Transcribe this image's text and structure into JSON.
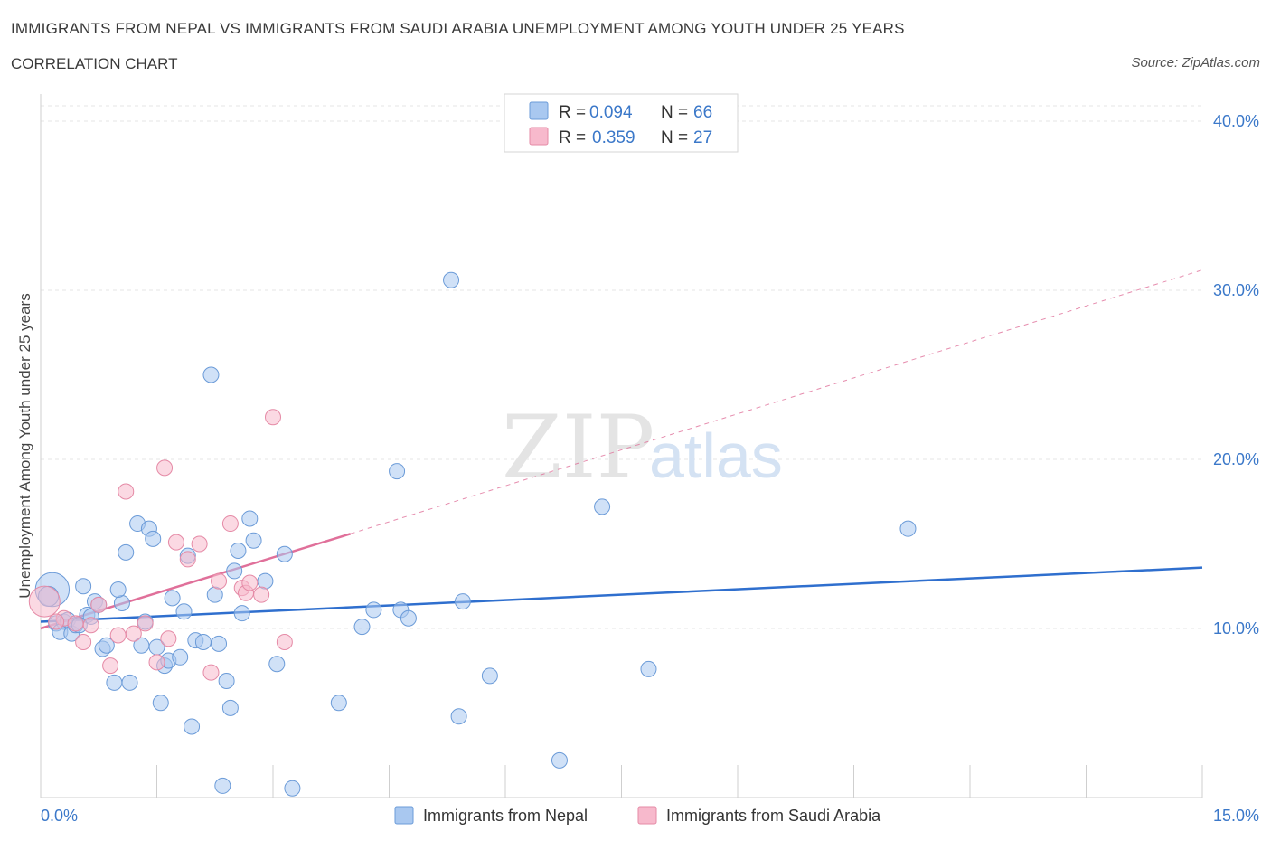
{
  "header": {
    "title": "IMMIGRANTS FROM NEPAL VS IMMIGRANTS FROM SAUDI ARABIA UNEMPLOYMENT AMONG YOUTH UNDER 25 YEARS",
    "subtitle": "CORRELATION CHART",
    "source": "Source: ZipAtlas.com"
  },
  "watermark": {
    "zip": "ZIP",
    "atlas": "atlas"
  },
  "chart_data": {
    "type": "scatter",
    "title": "IMMIGRANTS FROM NEPAL VS IMMIGRANTS FROM SAUDI ARABIA UNEMPLOYMENT AMONG YOUTH UNDER 25 YEARS",
    "xlabel": "",
    "ylabel": "Unemployment Among Youth under 25 years",
    "xlim": [
      0,
      15
    ],
    "ylim": [
      0,
      40
    ],
    "x_tick_labels": [
      "0.0%",
      "15.0%"
    ],
    "y_ticks": [
      10,
      20,
      30,
      40
    ],
    "y_tick_labels": [
      "10.0%",
      "20.0%",
      "30.0%",
      "40.0%"
    ],
    "grid": true,
    "legend": [
      {
        "name": "Immigrants from Nepal",
        "r_label": "R =",
        "r": "0.094",
        "n_label": "N =",
        "n": "66",
        "color": "#a9c8f0",
        "stroke": "#6b9bd8"
      },
      {
        "name": "Immigrants from Saudi Arabia",
        "r_label": "R =",
        "r": "0.359",
        "n_label": "N =",
        "n": "27",
        "color": "#f7b9cc",
        "stroke": "#e58aa6"
      }
    ],
    "series": [
      {
        "name": "Immigrants from Nepal",
        "color": "#a9c8f0",
        "stroke": "#6b9bd8",
        "trend": {
          "x0": 0.0,
          "y0": 10.4,
          "x1": 15.0,
          "y1": 13.6,
          "color": "#2f6fce"
        },
        "points": [
          [
            0.15,
            12.3,
            2.2
          ],
          [
            0.1,
            11.9,
            1.3
          ],
          [
            0.2,
            10.3,
            1
          ],
          [
            0.3,
            10.4,
            1
          ],
          [
            0.25,
            9.8,
            1
          ],
          [
            0.35,
            10.5,
            1
          ],
          [
            0.4,
            9.7,
            1
          ],
          [
            0.45,
            10.2,
            1
          ],
          [
            0.55,
            12.5,
            1
          ],
          [
            0.6,
            10.8,
            1
          ],
          [
            0.65,
            10.7,
            1
          ],
          [
            0.7,
            11.6,
            1
          ],
          [
            0.75,
            11.4,
            1
          ],
          [
            0.8,
            8.8,
            1
          ],
          [
            0.85,
            9.0,
            1
          ],
          [
            0.95,
            6.8,
            1
          ],
          [
            1.05,
            11.5,
            1
          ],
          [
            1.0,
            12.3,
            1
          ],
          [
            1.1,
            14.5,
            1
          ],
          [
            1.15,
            6.8,
            1
          ],
          [
            1.25,
            16.2,
            1
          ],
          [
            1.35,
            10.4,
            1
          ],
          [
            1.4,
            15.9,
            1
          ],
          [
            1.45,
            15.3,
            1
          ],
          [
            1.5,
            8.9,
            1
          ],
          [
            1.55,
            5.6,
            1
          ],
          [
            1.6,
            7.8,
            1
          ],
          [
            1.65,
            8.1,
            1
          ],
          [
            1.7,
            11.8,
            1
          ],
          [
            1.8,
            8.3,
            1
          ],
          [
            1.85,
            11.0,
            1
          ],
          [
            1.9,
            14.3,
            1
          ],
          [
            1.95,
            4.2,
            1
          ],
          [
            2.0,
            9.3,
            1
          ],
          [
            2.1,
            9.2,
            1
          ],
          [
            2.2,
            25.0,
            1
          ],
          [
            2.25,
            12.0,
            1
          ],
          [
            2.3,
            9.1,
            1
          ],
          [
            2.35,
            0.7,
            1
          ],
          [
            2.4,
            6.9,
            1
          ],
          [
            2.45,
            5.3,
            1
          ],
          [
            2.5,
            13.4,
            1
          ],
          [
            2.55,
            14.6,
            1
          ],
          [
            2.6,
            10.9,
            1
          ],
          [
            2.7,
            16.5,
            1
          ],
          [
            2.75,
            15.2,
            1
          ],
          [
            2.9,
            12.8,
            1
          ],
          [
            3.05,
            7.9,
            1
          ],
          [
            3.15,
            14.4,
            1
          ],
          [
            3.25,
            0.55,
            1
          ],
          [
            3.85,
            5.6,
            1
          ],
          [
            4.15,
            10.1,
            1
          ],
          [
            4.3,
            11.1,
            1
          ],
          [
            4.65,
            11.1,
            1
          ],
          [
            4.75,
            10.6,
            1
          ],
          [
            4.6,
            19.3,
            1
          ],
          [
            5.3,
            30.6,
            1
          ],
          [
            5.4,
            4.8,
            1
          ],
          [
            5.45,
            11.6,
            1
          ],
          [
            5.8,
            7.2,
            1
          ],
          [
            6.7,
            2.2,
            1
          ],
          [
            7.25,
            17.2,
            1
          ],
          [
            7.85,
            7.6,
            1
          ],
          [
            11.2,
            15.9,
            1
          ],
          [
            0.5,
            10.2,
            1
          ],
          [
            1.3,
            9.0,
            1
          ]
        ]
      },
      {
        "name": "Immigrants from Saudi Arabia",
        "color": "#f7b9cc",
        "stroke": "#e58aa6",
        "trend": {
          "x0": 0.0,
          "y0": 10.0,
          "x1": 4.0,
          "y1": 15.6,
          "dash_x1": 15.0,
          "dash_y1": 31.2,
          "color": "#e0709a"
        },
        "points": [
          [
            0.05,
            11.6,
            2.0
          ],
          [
            0.3,
            10.6,
            1
          ],
          [
            0.45,
            10.3,
            1
          ],
          [
            0.55,
            9.2,
            1
          ],
          [
            0.65,
            10.2,
            1
          ],
          [
            0.75,
            11.4,
            1
          ],
          [
            0.9,
            7.8,
            1
          ],
          [
            1.0,
            9.6,
            1
          ],
          [
            1.1,
            18.1,
            1
          ],
          [
            1.2,
            9.7,
            1
          ],
          [
            1.35,
            10.3,
            1
          ],
          [
            1.5,
            8.0,
            1
          ],
          [
            1.6,
            19.5,
            1
          ],
          [
            1.65,
            9.4,
            1
          ],
          [
            1.75,
            15.1,
            1
          ],
          [
            1.9,
            14.1,
            1
          ],
          [
            2.05,
            15.0,
            1
          ],
          [
            2.2,
            7.4,
            1
          ],
          [
            2.3,
            12.8,
            1
          ],
          [
            2.45,
            16.2,
            1
          ],
          [
            2.6,
            12.4,
            1
          ],
          [
            2.65,
            12.1,
            1
          ],
          [
            2.7,
            12.7,
            1
          ],
          [
            2.85,
            12.0,
            1
          ],
          [
            3.0,
            22.5,
            1
          ],
          [
            3.15,
            9.2,
            1
          ],
          [
            0.2,
            10.4,
            1
          ]
        ]
      }
    ]
  }
}
